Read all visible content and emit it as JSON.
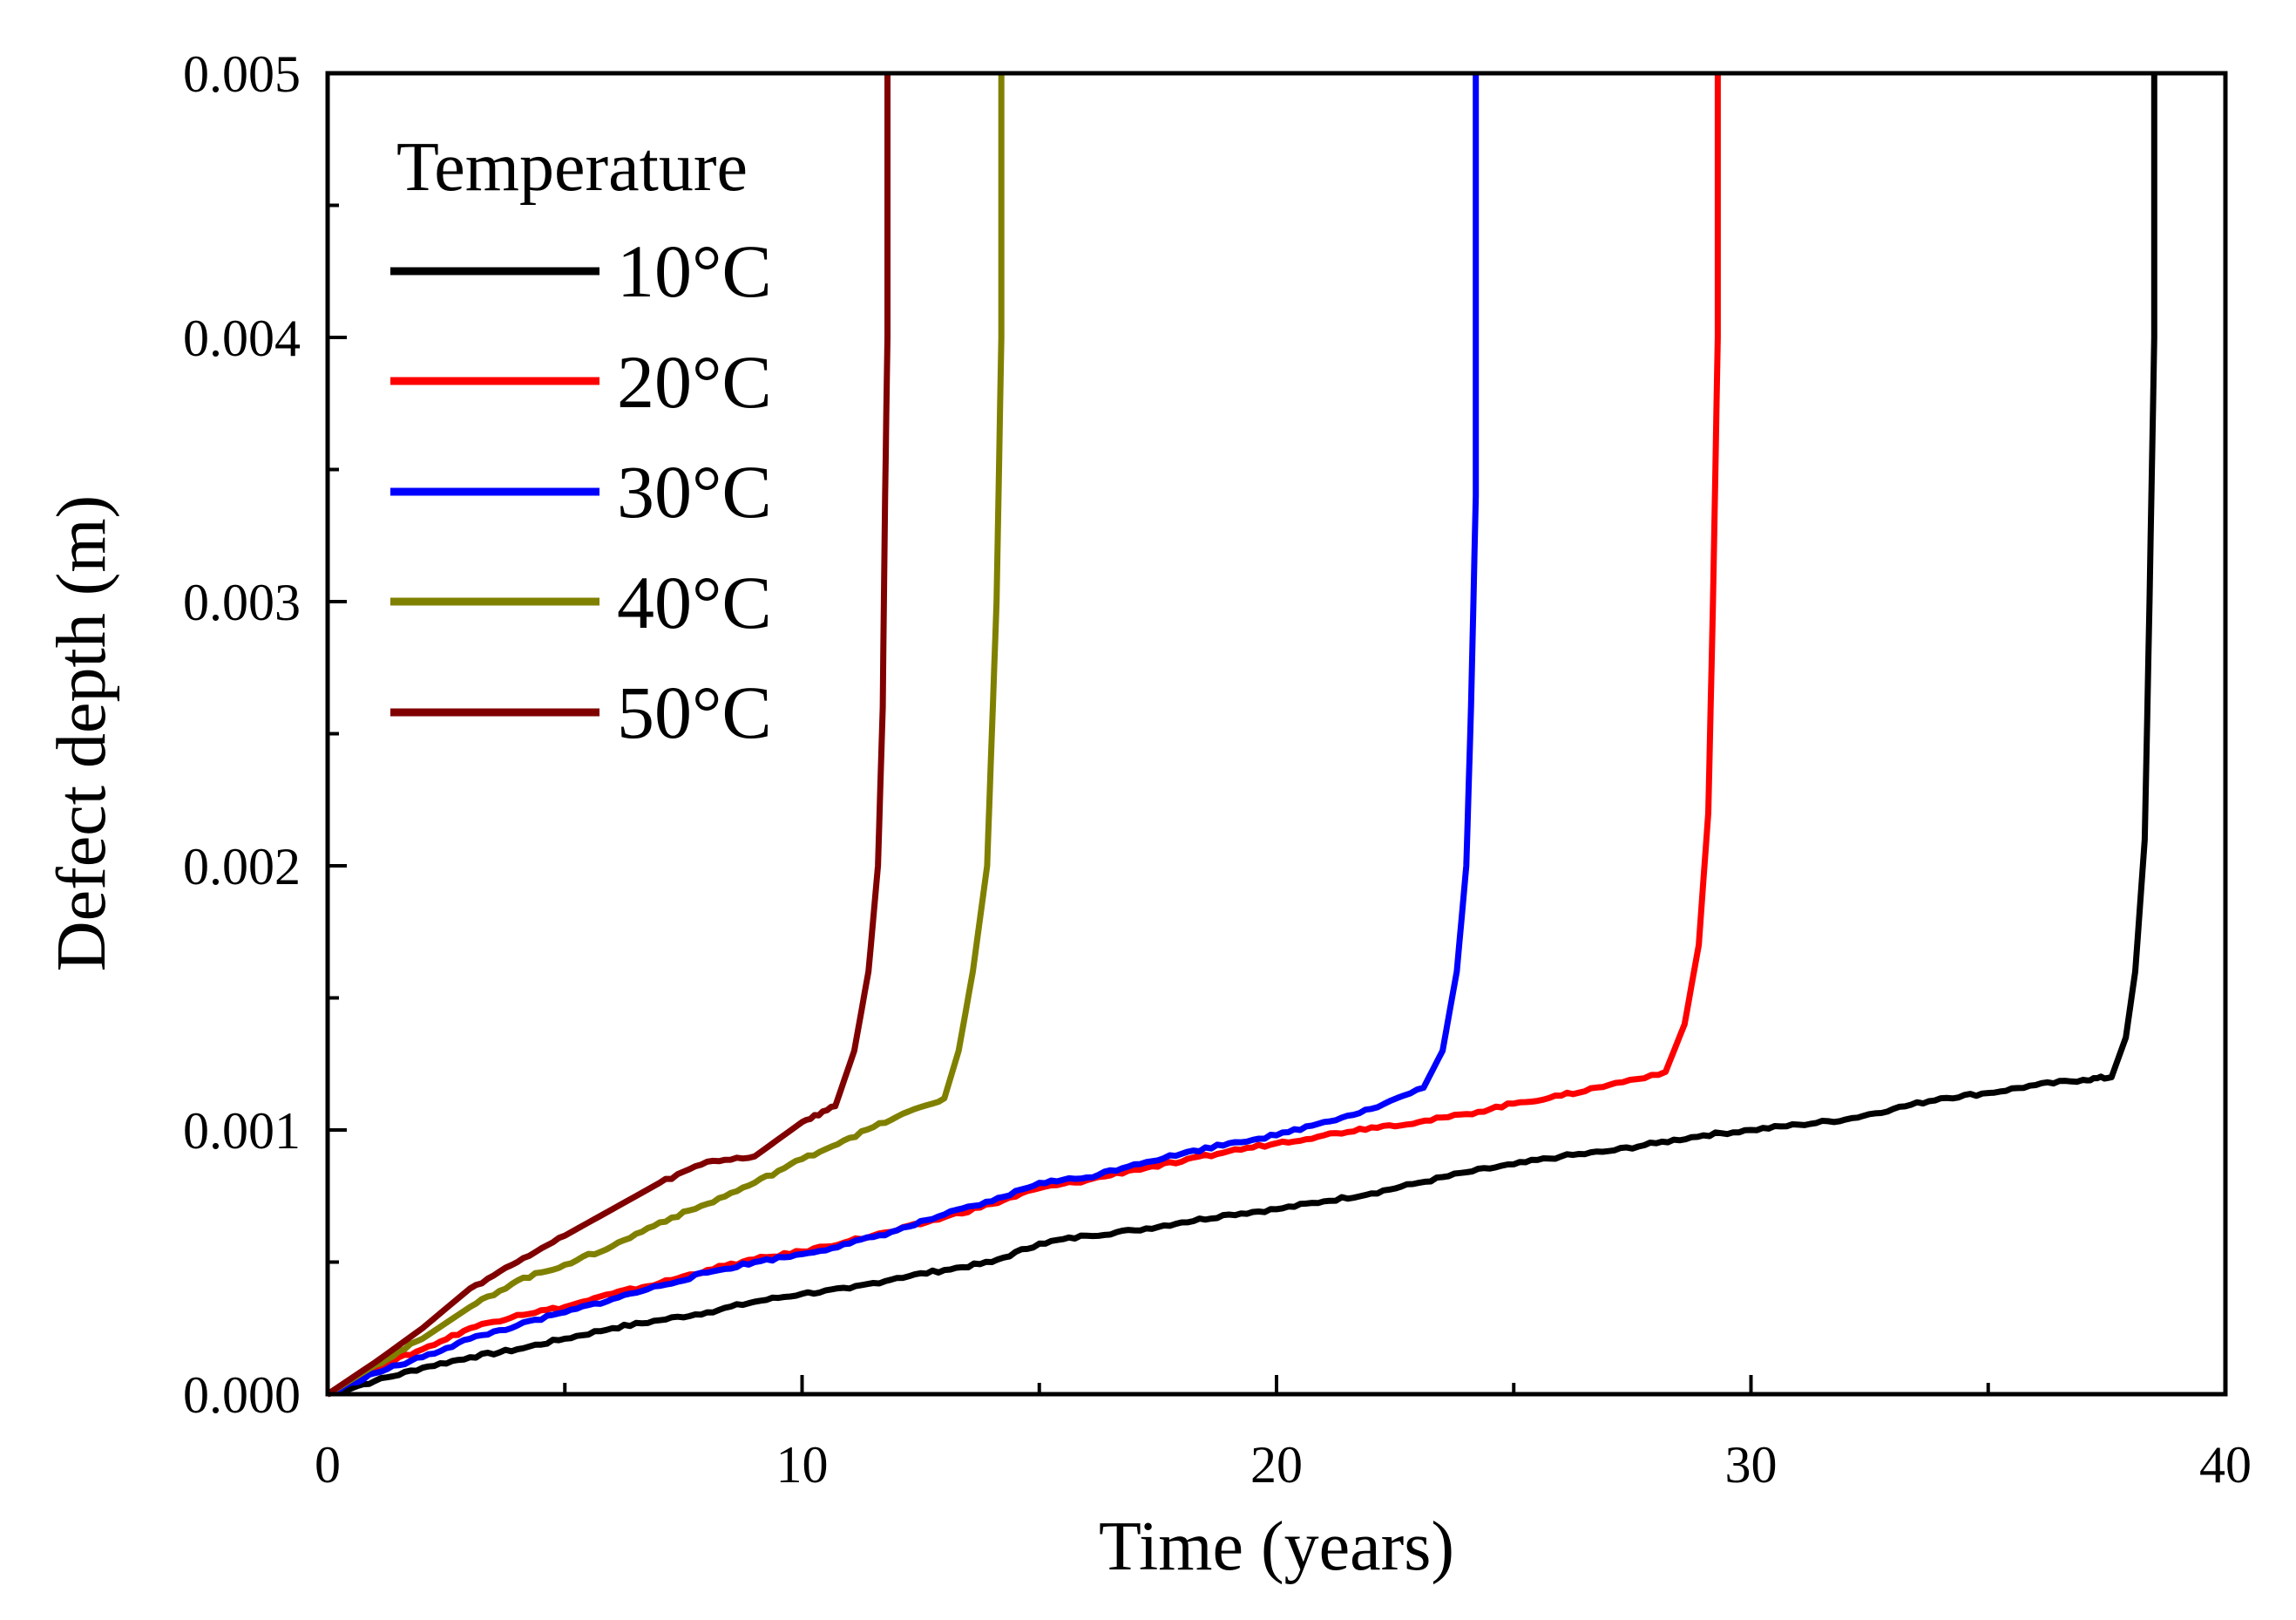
{
  "chart_data": {
    "type": "line",
    "title": "",
    "xlabel": "Time (years)",
    "ylabel": "Defect depth (m)",
    "xlim": [
      0,
      40
    ],
    "ylim": [
      0,
      0.005
    ],
    "x_ticks": [
      "0",
      "10",
      "20",
      "30",
      "40"
    ],
    "y_ticks": [
      "0.000",
      "0.001",
      "0.002",
      "0.003",
      "0.004",
      "0.005"
    ],
    "grid": false,
    "legend": {
      "title": "Temperature",
      "position": "top-left"
    },
    "series": [
      {
        "name": "10°C",
        "color": "#000000",
        "points": [
          [
            0,
            0
          ],
          [
            1,
            5e-05
          ],
          [
            2,
            0.0001
          ],
          [
            3,
            0.00014
          ],
          [
            4,
            0.00017
          ],
          [
            5,
            0.00021
          ],
          [
            6,
            0.00025
          ],
          [
            7,
            0.00028
          ],
          [
            8,
            0.00031
          ],
          [
            9,
            0.00035
          ],
          [
            10,
            0.00038
          ],
          [
            11,
            0.0004
          ],
          [
            12,
            0.00044
          ],
          [
            13,
            0.00047
          ],
          [
            14,
            0.0005
          ],
          [
            15,
            0.00057
          ],
          [
            16,
            0.0006
          ],
          [
            17,
            0.00062
          ],
          [
            18,
            0.00065
          ],
          [
            19,
            0.00068
          ],
          [
            20,
            0.0007
          ],
          [
            21,
            0.00073
          ],
          [
            22,
            0.00076
          ],
          [
            23,
            0.0008
          ],
          [
            24,
            0.00084
          ],
          [
            25,
            0.00087
          ],
          [
            26,
            0.0009
          ],
          [
            27,
            0.00092
          ],
          [
            28,
            0.00095
          ],
          [
            29,
            0.00098
          ],
          [
            30,
            0.001
          ],
          [
            31,
            0.00102
          ],
          [
            32,
            0.00104
          ],
          [
            33,
            0.00108
          ],
          [
            34,
            0.00112
          ],
          [
            35,
            0.00114
          ],
          [
            36,
            0.00117
          ],
          [
            37,
            0.00119
          ],
          [
            37.6,
            0.0012
          ],
          [
            37.9,
            0.00135
          ],
          [
            38.1,
            0.0016
          ],
          [
            38.3,
            0.0021
          ],
          [
            38.4,
            0.003
          ],
          [
            38.5,
            0.004
          ],
          [
            38.5,
            0.005
          ]
        ]
      },
      {
        "name": "20°C",
        "color": "#ff0000",
        "points": [
          [
            0,
            0
          ],
          [
            1,
            0.0001
          ],
          [
            2,
            0.00017
          ],
          [
            3,
            0.00025
          ],
          [
            4,
            0.0003
          ],
          [
            5,
            0.00033
          ],
          [
            6,
            0.00038
          ],
          [
            7,
            0.00042
          ],
          [
            8,
            0.00047
          ],
          [
            9,
            0.00051
          ],
          [
            10,
            0.00054
          ],
          [
            11,
            0.00058
          ],
          [
            12,
            0.00062
          ],
          [
            13,
            0.00067
          ],
          [
            14,
            0.00072
          ],
          [
            15,
            0.00078
          ],
          [
            16,
            0.00081
          ],
          [
            17,
            0.00085
          ],
          [
            18,
            0.00088
          ],
          [
            19,
            0.00092
          ],
          [
            20,
            0.00095
          ],
          [
            21,
            0.00098
          ],
          [
            22,
            0.00101
          ],
          [
            23,
            0.00103
          ],
          [
            24,
            0.00106
          ],
          [
            25,
            0.0011
          ],
          [
            26,
            0.00113
          ],
          [
            27,
            0.00117
          ],
          [
            28.2,
            0.00122
          ],
          [
            28.6,
            0.0014
          ],
          [
            28.9,
            0.0017
          ],
          [
            29.1,
            0.0022
          ],
          [
            29.2,
            0.003
          ],
          [
            29.3,
            0.004
          ],
          [
            29.3,
            0.005
          ]
        ]
      },
      {
        "name": "30°C",
        "color": "#0000ff",
        "points": [
          [
            0,
            0
          ],
          [
            1,
            8e-05
          ],
          [
            2,
            0.00014
          ],
          [
            3,
            0.00021
          ],
          [
            4,
            0.00026
          ],
          [
            5,
            0.00031
          ],
          [
            6,
            0.00036
          ],
          [
            7,
            0.00041
          ],
          [
            8,
            0.00046
          ],
          [
            9,
            0.0005
          ],
          [
            10,
            0.00053
          ],
          [
            11,
            0.00057
          ],
          [
            12,
            0.00062
          ],
          [
            13,
            0.00068
          ],
          [
            14,
            0.00073
          ],
          [
            15,
            0.0008
          ],
          [
            16,
            0.00082
          ],
          [
            17,
            0.00087
          ],
          [
            18,
            0.00091
          ],
          [
            19,
            0.00095
          ],
          [
            20,
            0.00098
          ],
          [
            21,
            0.00103
          ],
          [
            22,
            0.00108
          ],
          [
            23.1,
            0.00116
          ],
          [
            23.5,
            0.0013
          ],
          [
            23.8,
            0.0016
          ],
          [
            24.0,
            0.002
          ],
          [
            24.1,
            0.0026
          ],
          [
            24.2,
            0.0034
          ],
          [
            24.2,
            0.005
          ]
        ]
      },
      {
        "name": "40°C",
        "color": "#808000",
        "points": [
          [
            0,
            0
          ],
          [
            1,
            0.00011
          ],
          [
            2,
            0.00021
          ],
          [
            3,
            0.00033
          ],
          [
            4,
            0.00043
          ],
          [
            5,
            0.00049
          ],
          [
            6,
            0.00056
          ],
          [
            7,
            0.00065
          ],
          [
            8,
            0.00072
          ],
          [
            9,
            0.0008
          ],
          [
            10,
            0.00089
          ],
          [
            11,
            0.00097
          ],
          [
            12,
            0.00105
          ],
          [
            13.0,
            0.00112
          ],
          [
            13.3,
            0.0013
          ],
          [
            13.6,
            0.0016
          ],
          [
            13.9,
            0.002
          ],
          [
            14.0,
            0.0025
          ],
          [
            14.1,
            0.003
          ],
          [
            14.2,
            0.004
          ],
          [
            14.2,
            0.005
          ]
        ]
      },
      {
        "name": "50°C",
        "color": "#800000",
        "points": [
          [
            0,
            0
          ],
          [
            1,
            0.00012
          ],
          [
            2,
            0.00025
          ],
          [
            3,
            0.0004
          ],
          [
            4,
            0.0005
          ],
          [
            5,
            0.0006
          ],
          [
            6,
            0.0007
          ],
          [
            7,
            0.0008
          ],
          [
            8,
            0.00088
          ],
          [
            9,
            0.0009
          ],
          [
            10,
            0.00103
          ],
          [
            10.7,
            0.00109
          ],
          [
            11.1,
            0.0013
          ],
          [
            11.4,
            0.0016
          ],
          [
            11.6,
            0.002
          ],
          [
            11.7,
            0.0026
          ],
          [
            11.75,
            0.0034
          ],
          [
            11.8,
            0.004
          ],
          [
            11.8,
            0.005
          ]
        ]
      }
    ]
  }
}
